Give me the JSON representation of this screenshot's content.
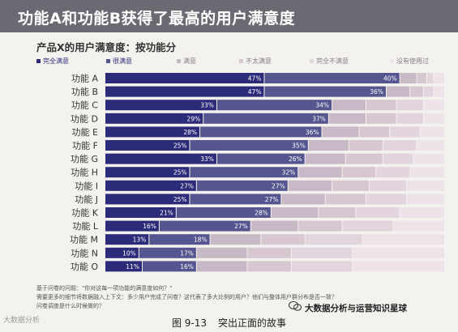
{
  "header": {
    "title": "功能A和功能B获得了最高的用户满意度"
  },
  "chart_data": {
    "type": "bar",
    "orientation": "horizontal",
    "stacked": "percent",
    "title": "产品X的用户满意度：按功能分",
    "categories": [
      "功能 A",
      "功能 B",
      "功能 C",
      "功能 D",
      "功能 E",
      "功能 F",
      "功能 G",
      "功能 H",
      "功能 I",
      "功能 J",
      "功能 K",
      "功能 L",
      "功能 M",
      "功能 N",
      "功能 O"
    ],
    "series": [
      {
        "name": "完全满意",
        "color": "#2b2b7a",
        "values": [
          47,
          47,
          33,
          29,
          28,
          25,
          33,
          25,
          27,
          25,
          21,
          16,
          13,
          10,
          11
        ],
        "labels": [
          "47%",
          "47%",
          "33%",
          "29%",
          "28%",
          "25%",
          "33%",
          "25%",
          "27%",
          "25%",
          "21%",
          "16%",
          "13%",
          "10%",
          "11%"
        ]
      },
      {
        "name": "很满意",
        "color": "#55558f",
        "values": [
          40,
          36,
          34,
          37,
          36,
          35,
          26,
          32,
          27,
          27,
          28,
          27,
          18,
          17,
          16
        ],
        "labels": [
          "40%",
          "36%",
          "34%",
          "37%",
          "36%",
          "35%",
          "26%",
          "32%",
          "27%",
          "27%",
          "28%",
          "27%",
          "18%",
          "17%",
          "16%"
        ]
      },
      {
        "name": "满意",
        "color": "#c7b9c5",
        "values": [
          5,
          7,
          10,
          11,
          11,
          12,
          12,
          13,
          13,
          13,
          14,
          14,
          15,
          15,
          15
        ]
      },
      {
        "name": "不太满意",
        "color": "#d6c7d1",
        "values": [
          3,
          4,
          9,
          9,
          9,
          10,
          11,
          10,
          11,
          12,
          11,
          13,
          13,
          13,
          13
        ]
      },
      {
        "name": "完全不满意",
        "color": "#e3d5de",
        "values": [
          2,
          3,
          8,
          8,
          9,
          10,
          9,
          10,
          11,
          12,
          13,
          15,
          17,
          18,
          18
        ]
      },
      {
        "name": "没有使用过",
        "color": "#ede3e9",
        "values": [
          3,
          3,
          6,
          6,
          7,
          8,
          9,
          10,
          11,
          11,
          13,
          15,
          24,
          27,
          27
        ]
      }
    ],
    "xlim": [
      0,
      100
    ],
    "grid": false,
    "legend_position": "top"
  },
  "notes": {
    "line1": "基于问卷的问题：\"你对这每一项功能的满意度如何？\"",
    "line2": "需要更多的细节将数据融入上下文：多少用户完成了问卷？这代表了多大比例的用户？他们与整体用户群分布是否一致？",
    "line3": "问卷调查是什么时候做的？"
  },
  "caption": {
    "figure_number": "图 9-13",
    "text": "突出正面的故事"
  },
  "watermarks": {
    "left": "大数据分析",
    "right": "大数据分析与运营知识星球"
  }
}
